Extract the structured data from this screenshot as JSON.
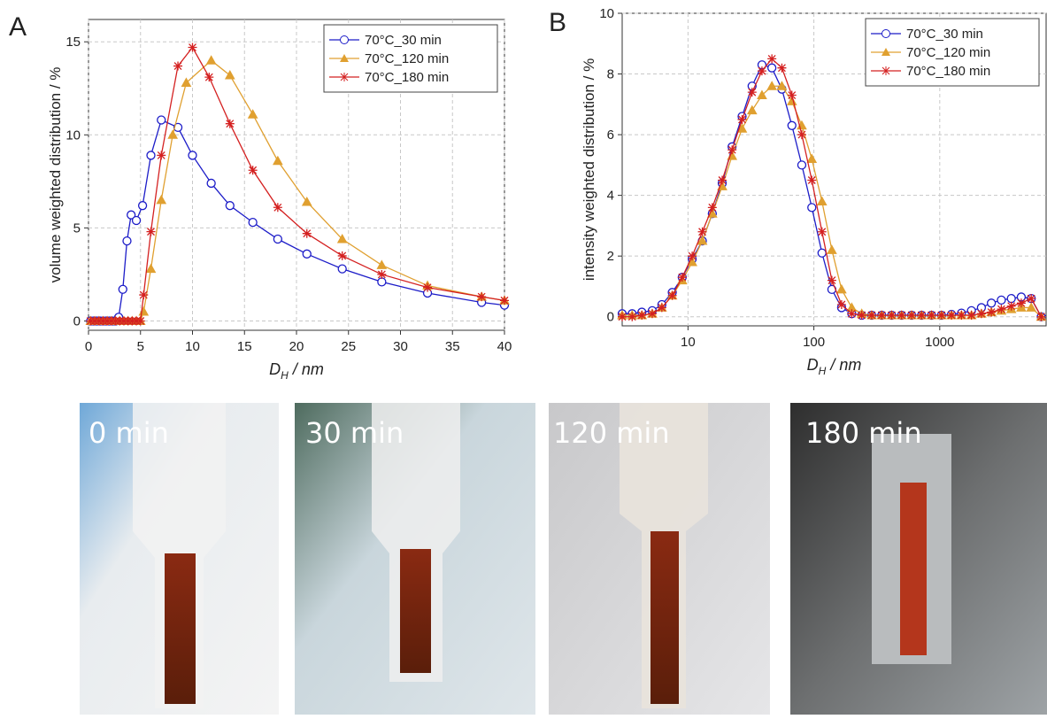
{
  "chart_data": [
    {
      "type": "line",
      "panel": "A",
      "y_label": "volume weighted distribution / %",
      "x_label": {
        "main": "D",
        "sub": "H",
        "rest": " / nm"
      },
      "xlim": [
        0,
        40
      ],
      "xticks": [
        0,
        5,
        10,
        15,
        20,
        25,
        30,
        35,
        40
      ],
      "ylim": [
        -0.5,
        16.2
      ],
      "yticks": [
        0,
        5,
        10,
        15
      ],
      "grid": true,
      "log_x": false,
      "legend": "top-right",
      "series": [
        {
          "name": "70°C_30 min",
          "color": "#1c1cc8",
          "marker": "circle",
          "x": [
            0.2,
            0.5,
            0.8,
            1.1,
            1.4,
            1.7,
            2.0,
            2.3,
            2.6,
            2.9,
            3.3,
            3.7,
            4.1,
            4.6,
            5.2,
            6.0,
            7.0,
            8.6,
            10.0,
            11.8,
            13.6,
            15.8,
            18.2,
            21.0,
            24.4,
            28.2,
            32.6,
            37.8,
            40
          ],
          "values": [
            0,
            0,
            0,
            0,
            0,
            0,
            0,
            0,
            0,
            0.2,
            1.7,
            4.3,
            5.7,
            5.4,
            6.2,
            8.9,
            10.8,
            10.4,
            8.9,
            7.4,
            6.2,
            5.3,
            4.4,
            3.6,
            2.8,
            2.1,
            1.5,
            1.0,
            0.85
          ]
        },
        {
          "name": "70°C_120 min",
          "color": "#e0a030",
          "marker": "triangle",
          "x": [
            0.2,
            0.6,
            1.0,
            1.4,
            1.8,
            2.2,
            2.6,
            3.0,
            3.4,
            3.8,
            4.2,
            4.6,
            5.0,
            5.3,
            6.0,
            7.0,
            8.1,
            9.4,
            11.8,
            13.6,
            15.8,
            18.2,
            21.0,
            24.4,
            28.2,
            32.6,
            37.8,
            40
          ],
          "values": [
            0,
            0,
            0,
            0,
            0,
            0,
            0,
            0,
            0,
            0,
            0,
            0,
            0,
            0.5,
            2.8,
            6.5,
            10.0,
            12.8,
            14.0,
            13.2,
            11.1,
            8.6,
            6.4,
            4.4,
            3.0,
            1.9,
            1.3,
            1.1
          ]
        },
        {
          "name": "70°C_180 min",
          "color": "#d42020",
          "marker": "star",
          "x": [
            0.2,
            0.6,
            1.0,
            1.4,
            1.8,
            2.2,
            2.6,
            3.0,
            3.4,
            3.8,
            4.2,
            4.6,
            5.0,
            5.3,
            6.0,
            7.0,
            8.6,
            10.0,
            11.6,
            13.6,
            15.8,
            18.2,
            21.0,
            24.4,
            28.2,
            32.6,
            37.8,
            40
          ],
          "values": [
            0,
            0,
            0,
            0,
            0,
            0,
            0,
            0,
            0,
            0,
            0,
            0,
            0,
            1.4,
            4.8,
            8.9,
            13.7,
            14.7,
            13.1,
            10.6,
            8.1,
            6.1,
            4.7,
            3.5,
            2.5,
            1.8,
            1.3,
            1.1
          ]
        }
      ]
    },
    {
      "type": "line",
      "panel": "B",
      "y_label": "intensity weighted distribution / %",
      "x_label": {
        "main": "D",
        "sub": "H",
        "rest": " / nm"
      },
      "xlim": [
        3,
        7000
      ],
      "xticks": [
        10,
        100,
        1000
      ],
      "ylim": [
        -0.3,
        10
      ],
      "yticks": [
        0,
        2,
        4,
        6,
        8,
        10
      ],
      "grid": true,
      "log_x": true,
      "legend": "top-right",
      "series": [
        {
          "name": "70°C_30 min",
          "color": "#1c1cc8",
          "marker": "circle",
          "x": [
            3,
            3.6,
            4.3,
            5.2,
            6.2,
            7.5,
            9,
            10.8,
            13,
            15.6,
            18.7,
            22.4,
            26.9,
            32.3,
            38.7,
            46.4,
            55.7,
            66.9,
            80.2,
            96.3,
            116,
            139,
            166,
            200,
            240,
            288,
            346,
            415,
            498,
            598,
            717,
            861,
            1033,
            1240,
            1488,
            1786,
            2143,
            2571,
            3086,
            3703,
            4443,
            5332,
            6400
          ],
          "values": [
            0.1,
            0.1,
            0.15,
            0.2,
            0.4,
            0.8,
            1.3,
            1.9,
            2.5,
            3.4,
            4.4,
            5.6,
            6.6,
            7.6,
            8.3,
            8.2,
            7.5,
            6.3,
            5.0,
            3.6,
            2.1,
            0.9,
            0.3,
            0.1,
            0.05,
            0.05,
            0.05,
            0.05,
            0.05,
            0.05,
            0.05,
            0.05,
            0.05,
            0.08,
            0.12,
            0.2,
            0.3,
            0.45,
            0.55,
            0.6,
            0.65,
            0.6,
            0
          ]
        },
        {
          "name": "70°C_120 min",
          "color": "#e0a030",
          "marker": "triangle",
          "x": [
            3,
            3.6,
            4.3,
            5.2,
            6.2,
            7.5,
            9,
            10.8,
            13,
            15.6,
            18.7,
            22.4,
            26.9,
            32.3,
            38.7,
            46.4,
            55.7,
            66.9,
            80.2,
            96.3,
            116,
            139,
            166,
            200,
            240,
            288,
            346,
            415,
            498,
            598,
            717,
            861,
            1033,
            1240,
            1488,
            1786,
            2143,
            2571,
            3086,
            3703,
            4443,
            5332,
            6400
          ],
          "values": [
            0.05,
            0.05,
            0.05,
            0.1,
            0.3,
            0.7,
            1.2,
            1.8,
            2.5,
            3.4,
            4.3,
            5.3,
            6.2,
            6.8,
            7.3,
            7.6,
            7.6,
            7.1,
            6.3,
            5.2,
            3.8,
            2.2,
            0.9,
            0.3,
            0.1,
            0.05,
            0.05,
            0.05,
            0.05,
            0.05,
            0.05,
            0.05,
            0.05,
            0.05,
            0.05,
            0.05,
            0.1,
            0.15,
            0.2,
            0.25,
            0.3,
            0.3,
            0
          ]
        },
        {
          "name": "70°C_180 min",
          "color": "#d42020",
          "marker": "star",
          "x": [
            3,
            3.6,
            4.3,
            5.2,
            6.2,
            7.5,
            9,
            10.8,
            13,
            15.6,
            18.7,
            22.4,
            26.9,
            32.3,
            38.7,
            46.4,
            55.7,
            66.9,
            80.2,
            96.3,
            116,
            139,
            166,
            200,
            240,
            288,
            346,
            415,
            498,
            598,
            717,
            861,
            1033,
            1240,
            1488,
            1786,
            2143,
            2571,
            3086,
            3703,
            4443,
            5332,
            6400
          ],
          "values": [
            0,
            0,
            0.05,
            0.1,
            0.3,
            0.7,
            1.3,
            2.0,
            2.8,
            3.6,
            4.5,
            5.5,
            6.5,
            7.4,
            8.1,
            8.5,
            8.2,
            7.3,
            6.0,
            4.5,
            2.8,
            1.2,
            0.4,
            0.1,
            0.05,
            0.05,
            0.05,
            0.05,
            0.05,
            0.05,
            0.05,
            0.05,
            0.05,
            0.05,
            0.05,
            0.05,
            0.1,
            0.15,
            0.25,
            0.35,
            0.45,
            0.6,
            0
          ]
        }
      ]
    }
  ],
  "photos": [
    {
      "label": "0 min"
    },
    {
      "label": "30 min"
    },
    {
      "label": "120 min"
    },
    {
      "label": "180 min"
    }
  ]
}
